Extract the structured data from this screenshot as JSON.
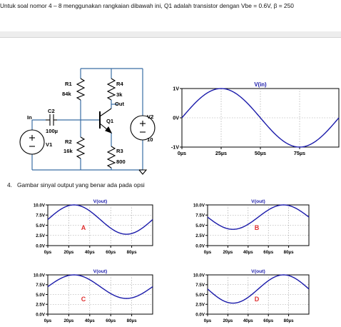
{
  "intro_text": "Untuk soal nomor 4 – 8 menggunakan rangkaian dibawah ini, Q1 adalah transistor dengan Vbe = 0.6V, β = 250",
  "question": {
    "number": "4.",
    "text": "Gambar sinyal output yang benar ada pada opsi"
  },
  "circuit": {
    "labels": {
      "r1": "R1",
      "r1_val": "84k",
      "r4": "R4",
      "r4_val": "3k",
      "out": "Out",
      "c2": "C2",
      "c2_val": "100µ",
      "in": "In",
      "q1": "Q1",
      "r2": "R2",
      "r2_val": "16k",
      "v1": "V1",
      "r3": "R3",
      "r3_val": "800",
      "v2": "V2",
      "v2_val": "10"
    },
    "colors": {
      "wire": "#3a6ea5",
      "component": "#000000"
    }
  },
  "chart_data": [
    {
      "id": "input",
      "type": "line",
      "title": "V(in)",
      "x_ticks": [
        "0µs",
        "25µs",
        "50µs",
        "75µs"
      ],
      "y_ticks": [
        "1V",
        "0V",
        "-1V"
      ],
      "xlim": [
        0,
        100
      ],
      "ylim": [
        -1,
        1
      ],
      "series": [
        {
          "name": "V(in)",
          "amplitude": 1,
          "offset": 0,
          "period_us": 100,
          "phase": "sine",
          "color": "#1a1aaa"
        }
      ]
    },
    {
      "id": "A",
      "type": "line",
      "title": "V(out)",
      "option_label": "A",
      "x_ticks": [
        "0µs",
        "20µs",
        "40µs",
        "60µs",
        "80µs"
      ],
      "y_ticks": [
        "10.0V",
        "7.5V",
        "5.0V",
        "2.5V",
        "0.0V"
      ],
      "xlim": [
        0,
        100
      ],
      "ylim": [
        0,
        10
      ],
      "series": [
        {
          "name": "V(out)",
          "offset": 6.4,
          "amplitude": 3.6,
          "period_us": 100,
          "phase": "sine",
          "color": "#1a1aaa"
        }
      ]
    },
    {
      "id": "B",
      "type": "line",
      "title": "V(out)",
      "option_label": "B",
      "x_ticks": [
        "0µs",
        "20µs",
        "40µs",
        "60µs",
        "80µs"
      ],
      "y_ticks": [
        "10.0V",
        "7.5V",
        "5.0V",
        "2.5V",
        "0.0V"
      ],
      "xlim": [
        0,
        100
      ],
      "ylim": [
        0,
        10
      ],
      "series": [
        {
          "name": "V(out)",
          "offset": 7.0,
          "amplitude": 3.0,
          "period_us": 100,
          "phase": "neg-sine",
          "color": "#1a1aaa"
        }
      ]
    },
    {
      "id": "C",
      "type": "line",
      "title": "V(out)",
      "option_label": "C",
      "x_ticks": [
        "0µs",
        "20µs",
        "40µs",
        "60µs",
        "80µs"
      ],
      "y_ticks": [
        "10.0V",
        "7.5V",
        "5.0V",
        "2.5V",
        "0.0V"
      ],
      "xlim": [
        0,
        100
      ],
      "ylim": [
        0,
        10
      ],
      "series": [
        {
          "name": "V(out)",
          "offset": 7.0,
          "amplitude": 3.0,
          "period_us": 100,
          "phase": "sine",
          "color": "#1a1aaa"
        }
      ]
    },
    {
      "id": "D",
      "type": "line",
      "title": "V(out)",
      "option_label": "D",
      "x_ticks": [
        "0µs",
        "20µs",
        "40µs",
        "60µs",
        "80µs"
      ],
      "y_ticks": [
        "10.0V",
        "7.5V",
        "5.0V",
        "2.5V",
        "0.0V"
      ],
      "xlim": [
        0,
        100
      ],
      "ylim": [
        0,
        10
      ],
      "series": [
        {
          "name": "V(out)",
          "offset": 6.4,
          "amplitude": 3.6,
          "period_us": 100,
          "phase": "neg-sine",
          "color": "#1a1aaa"
        }
      ]
    }
  ],
  "option_label_color": "#e03030"
}
